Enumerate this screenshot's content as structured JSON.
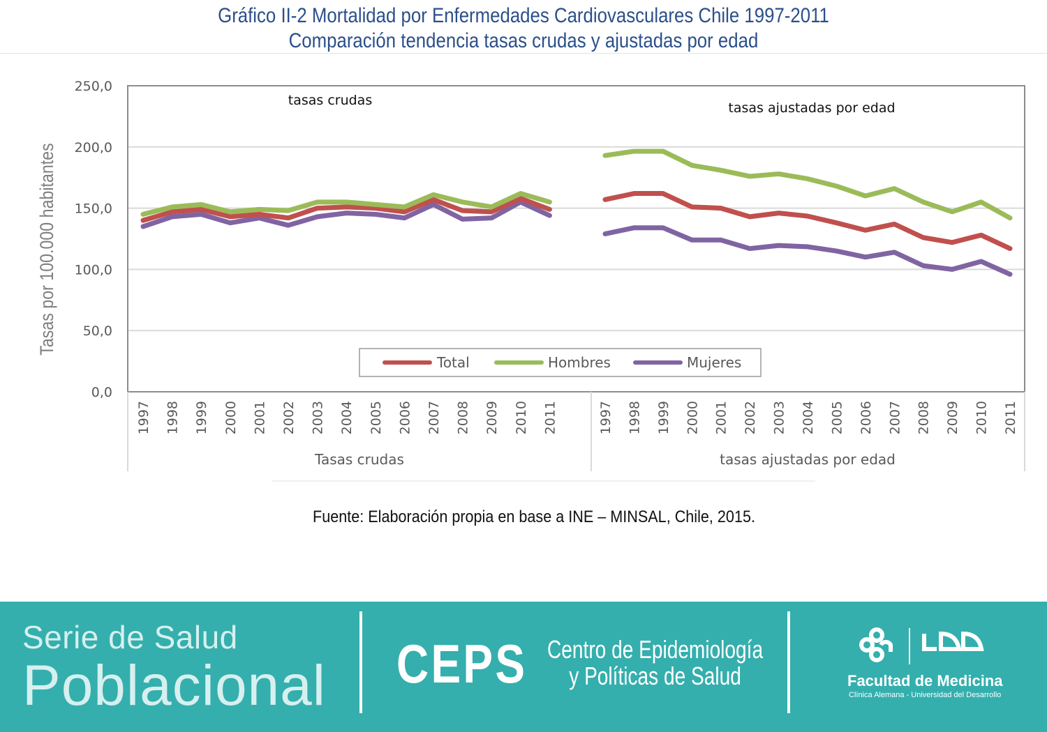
{
  "header": {
    "title_line1": "Gráfico II-2 Mortalidad por Enfermedades Cardiovasculares Chile 1997-2011",
    "title_line2": "Comparación tendencia tasas crudas y ajustadas por edad"
  },
  "chart_data": {
    "type": "line",
    "title": "Gráfico II-2 Mortalidad por Enfermedades Cardiovasculares Chile 1997-2011",
    "subtitle": "Comparación tendencia tasas crudas y ajustadas por edad",
    "ylabel": "Tasas por 100.000 habitantes",
    "xlabel": "",
    "ylim": [
      0,
      250
    ],
    "yticks": [
      "0,0",
      "50,0",
      "100,0",
      "150,0",
      "200,0",
      "250,0"
    ],
    "grid": true,
    "legend_position": "bottom-center",
    "legend": [
      "Total",
      "Hombres",
      "Mujeres"
    ],
    "colors": {
      "Total": "#c0504d",
      "Hombres": "#9bbb59",
      "Mujeres": "#8064a2"
    },
    "groups": [
      {
        "name": "Tasas crudas",
        "annotation": "tasas crudas",
        "x": [
          "1997",
          "1998",
          "1999",
          "2000",
          "2001",
          "2002",
          "2003",
          "2004",
          "2005",
          "2006",
          "2007",
          "2008",
          "2009",
          "2010",
          "2011"
        ],
        "series": [
          {
            "name": "Total",
            "values": [
              140,
              147,
              149,
              143,
              145,
              142,
              150,
              151,
              150,
              147,
              157,
              148,
              147,
              158,
              149
            ]
          },
          {
            "name": "Hombres",
            "values": [
              145,
              151,
              153,
              147,
              149,
              148,
              155,
              155,
              153,
              151,
              161,
              155,
              151,
              162,
              155
            ]
          },
          {
            "name": "Mujeres",
            "values": [
              135,
              143,
              145,
              138,
              142,
              136,
              143,
              146,
              145,
              142,
              153,
              141,
              142,
              155,
              144
            ]
          }
        ]
      },
      {
        "name": "tasas ajustadas por edad",
        "annotation": "tasas ajustadas por edad",
        "x": [
          "1997",
          "1998",
          "1999",
          "2000",
          "2001",
          "2002",
          "2003",
          "2004",
          "2005",
          "2006",
          "2007",
          "2008",
          "2009",
          "2010",
          "2011"
        ],
        "series": [
          {
            "name": "Total",
            "values": [
              157,
              162,
              162,
              151,
              150,
              143,
              146,
              143.5,
              138,
              132,
              137,
              126,
              122,
              128,
              117
            ]
          },
          {
            "name": "Hombres",
            "values": [
              193,
              196.5,
              196.5,
              185,
              181,
              176,
              178,
              174,
              168,
              160,
              166,
              155,
              147,
              155,
              142
            ]
          },
          {
            "name": "Mujeres",
            "values": [
              129,
              134,
              134,
              124,
              124,
              117,
              119.5,
              118.5,
              115,
              110,
              114,
              103,
              100,
              106.5,
              96
            ]
          }
        ]
      }
    ]
  },
  "source": "Fuente: Elaboración propia en base a INE – MINSAL, Chile, 2015.",
  "footer": {
    "series_line1": "Serie de Salud",
    "series_line2": "Poblacional",
    "ceps": "CEPS",
    "centro_line1": "Centro de Epidemiología",
    "centro_line2": "y Políticas de Salud",
    "logo_icon": "udd-logo-icon",
    "facultad": "Facultad de Medicina",
    "institution": "Clínica Alemana - Universidad del Desarrollo",
    "background_color": "#34afad"
  }
}
